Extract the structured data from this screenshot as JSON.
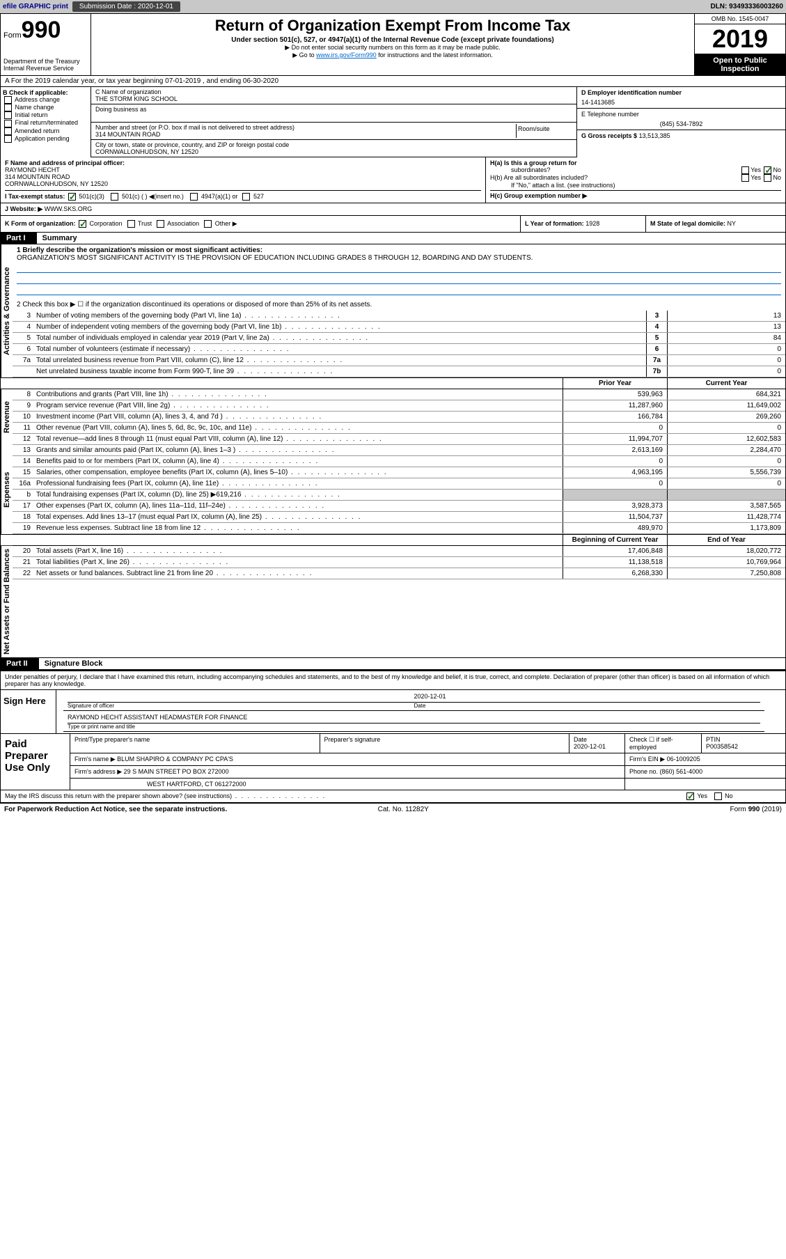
{
  "topbar": {
    "efile": "efile GRAPHIC print",
    "submission_label": "Submission Date :",
    "submission_date": "2020-12-01",
    "dln": "DLN: 93493336003260"
  },
  "header": {
    "form_prefix": "Form",
    "form_number": "990",
    "dept": "Department of the Treasury",
    "irs": "Internal Revenue Service",
    "title": "Return of Organization Exempt From Income Tax",
    "subtitle": "Under section 501(c), 527, or 4947(a)(1) of the Internal Revenue Code (except private foundations)",
    "note1": "▶ Do not enter social security numbers on this form as it may be made public.",
    "note2_pre": "▶ Go to ",
    "note2_link": "www.irs.gov/Form990",
    "note2_post": " for instructions and the latest information.",
    "omb": "OMB No. 1545-0047",
    "year": "2019",
    "inspect": "Open to Public Inspection"
  },
  "rowA": "A For the 2019 calendar year, or tax year beginning 07-01-2019   , and ending 06-30-2020",
  "blockB": {
    "label": "B Check if applicable:",
    "opts": [
      "Address change",
      "Name change",
      "Initial return",
      "Final return/terminated",
      "Amended return",
      "Application pending"
    ],
    "c_label": "C Name of organization",
    "org_name": "THE STORM KING SCHOOL",
    "dba": "Doing business as",
    "addr_label": "Number and street (or P.O. box if mail is not delivered to street address)",
    "room_label": "Room/suite",
    "addr": "314 MOUNTAIN ROAD",
    "city_label": "City or town, state or province, country, and ZIP or foreign postal code",
    "city": "CORNWALLONHUDSON, NY  12520",
    "d_label": "D Employer identification number",
    "ein": "14-1413685",
    "e_label": "E Telephone number",
    "phone": "(845) 534-7892",
    "g_label": "G Gross receipts $",
    "gross": "13,513,385"
  },
  "rowF": {
    "label": "F  Name and address of principal officer:",
    "name": "RAYMOND HECHT",
    "addr1": "314 MOUNTAIN ROAD",
    "addr2": "CORNWALLONHUDSON, NY  12520"
  },
  "rowH": {
    "ha": "H(a)  Is this a group return for",
    "ha2": "subordinates?",
    "hb": "H(b)  Are all subordinates included?",
    "note": "If \"No,\" attach a list. (see instructions)",
    "hc": "H(c)  Group exemption number ▶",
    "yes": "Yes",
    "no": "No"
  },
  "rowI": {
    "label": "I   Tax-exempt status:",
    "o1": "501(c)(3)",
    "o2": "501(c) (  ) ◀(insert no.)",
    "o3": "4947(a)(1) or",
    "o4": "527"
  },
  "rowJ": {
    "label": "J   Website: ▶",
    "url": "WWW.SKS.ORG"
  },
  "rowK": {
    "k_label": "K Form of organization:",
    "opts": [
      "Corporation",
      "Trust",
      "Association",
      "Other ▶"
    ],
    "l_label": "L Year of formation:",
    "l_val": "1928",
    "m_label": "M State of legal domicile:",
    "m_val": "NY"
  },
  "part1": {
    "hdr": "Part I",
    "title": "Summary",
    "line1_label": "1   Briefly describe the organization's mission or most significant activities:",
    "line1_text": "ORGANIZATION'S MOST SIGNIFICANT ACTIVITY IS THE PROVISION OF EDUCATION INCLUDING GRADES 8 THROUGH 12, BOARDING AND DAY STUDENTS.",
    "line2": "2   Check this box ▶ ☐  if the organization discontinued its operations or disposed of more than 25% of its net assets.",
    "sections": {
      "gov": "Activities & Governance",
      "rev": "Revenue",
      "exp": "Expenses",
      "net": "Net Assets or Fund Balances"
    },
    "py_hdr": "Prior Year",
    "cy_hdr": "Current Year",
    "bcy_hdr": "Beginning of Current Year",
    "eoy_hdr": "End of Year",
    "lines_gov": [
      {
        "n": "3",
        "d": "Number of voting members of the governing body (Part VI, line 1a)",
        "box": "3",
        "v": "13"
      },
      {
        "n": "4",
        "d": "Number of independent voting members of the governing body (Part VI, line 1b)",
        "box": "4",
        "v": "13"
      },
      {
        "n": "5",
        "d": "Total number of individuals employed in calendar year 2019 (Part V, line 2a)",
        "box": "5",
        "v": "84"
      },
      {
        "n": "6",
        "d": "Total number of volunteers (estimate if necessary)",
        "box": "6",
        "v": "0"
      },
      {
        "n": "7a",
        "d": "Total unrelated business revenue from Part VIII, column (C), line 12",
        "box": "7a",
        "v": "0"
      },
      {
        "n": "",
        "d": "Net unrelated business taxable income from Form 990-T, line 39",
        "box": "7b",
        "v": "0"
      }
    ],
    "lines_rev": [
      {
        "n": "8",
        "d": "Contributions and grants (Part VIII, line 1h)",
        "py": "539,963",
        "cy": "684,321"
      },
      {
        "n": "9",
        "d": "Program service revenue (Part VIII, line 2g)",
        "py": "11,287,960",
        "cy": "11,649,002"
      },
      {
        "n": "10",
        "d": "Investment income (Part VIII, column (A), lines 3, 4, and 7d )",
        "py": "166,784",
        "cy": "269,260"
      },
      {
        "n": "11",
        "d": "Other revenue (Part VIII, column (A), lines 5, 6d, 8c, 9c, 10c, and 11e)",
        "py": "0",
        "cy": "0"
      },
      {
        "n": "12",
        "d": "Total revenue—add lines 8 through 11 (must equal Part VIII, column (A), line 12)",
        "py": "11,994,707",
        "cy": "12,602,583"
      }
    ],
    "lines_exp": [
      {
        "n": "13",
        "d": "Grants and similar amounts paid (Part IX, column (A), lines 1–3 )",
        "py": "2,613,169",
        "cy": "2,284,470"
      },
      {
        "n": "14",
        "d": "Benefits paid to or for members (Part IX, column (A), line 4)",
        "py": "0",
        "cy": "0"
      },
      {
        "n": "15",
        "d": "Salaries, other compensation, employee benefits (Part IX, column (A), lines 5–10)",
        "py": "4,963,195",
        "cy": "5,556,739"
      },
      {
        "n": "16a",
        "d": "Professional fundraising fees (Part IX, column (A), line 11e)",
        "py": "0",
        "cy": "0"
      },
      {
        "n": "b",
        "d": "Total fundraising expenses (Part IX, column (D), line 25) ▶619,216",
        "py": "",
        "cy": "",
        "shade": true
      },
      {
        "n": "17",
        "d": "Other expenses (Part IX, column (A), lines 11a–11d, 11f–24e)",
        "py": "3,928,373",
        "cy": "3,587,565"
      },
      {
        "n": "18",
        "d": "Total expenses. Add lines 13–17 (must equal Part IX, column (A), line 25)",
        "py": "11,504,737",
        "cy": "11,428,774"
      },
      {
        "n": "19",
        "d": "Revenue less expenses. Subtract line 18 from line 12",
        "py": "489,970",
        "cy": "1,173,809"
      }
    ],
    "lines_net": [
      {
        "n": "20",
        "d": "Total assets (Part X, line 16)",
        "py": "17,406,848",
        "cy": "18,020,772"
      },
      {
        "n": "21",
        "d": "Total liabilities (Part X, line 26)",
        "py": "11,138,518",
        "cy": "10,769,964"
      },
      {
        "n": "22",
        "d": "Net assets or fund balances. Subtract line 21 from line 20",
        "py": "6,268,330",
        "cy": "7,250,808"
      }
    ]
  },
  "part2": {
    "hdr": "Part II",
    "title": "Signature Block",
    "decl": "Under penalties of perjury, I declare that I have examined this return, including accompanying schedules and statements, and to the best of my knowledge and belief, it is true, correct, and complete. Declaration of preparer (other than officer) is based on all information of which preparer has any knowledge.",
    "sign_here": "Sign Here",
    "sig_officer": "Signature of officer",
    "sig_date": "2020-12-01",
    "date_label": "Date",
    "sig_name": "RAYMOND HECHT  ASSISTANT HEADMASTER FOR FINANCE",
    "sig_type": "Type or print name and title",
    "paid": "Paid Preparer Use Only",
    "prep_name_label": "Print/Type preparer's name",
    "prep_sig_label": "Preparer's signature",
    "prep_date": "2020-12-01",
    "prep_date_label": "Date",
    "check_self": "Check ☐ if self-employed",
    "ptin_label": "PTIN",
    "ptin": "P00358542",
    "firm_name_label": "Firm's name    ▶",
    "firm_name": "BLUM SHAPIRO & COMPANY PC CPA'S",
    "firm_ein_label": "Firm's EIN ▶",
    "firm_ein": "06-1009205",
    "firm_addr_label": "Firm's address ▶",
    "firm_addr1": "29 S MAIN STREET PO BOX 272000",
    "firm_addr2": "WEST HARTFORD, CT  061272000",
    "phone_label": "Phone no.",
    "phone": "(860) 561-4000",
    "discuss": "May the IRS discuss this return with the preparer shown above? (see instructions)",
    "yes": "Yes",
    "no": "No"
  },
  "footer": {
    "left": "For Paperwork Reduction Act Notice, see the separate instructions.",
    "mid": "Cat. No. 11282Y",
    "right": "Form 990 (2019)"
  }
}
